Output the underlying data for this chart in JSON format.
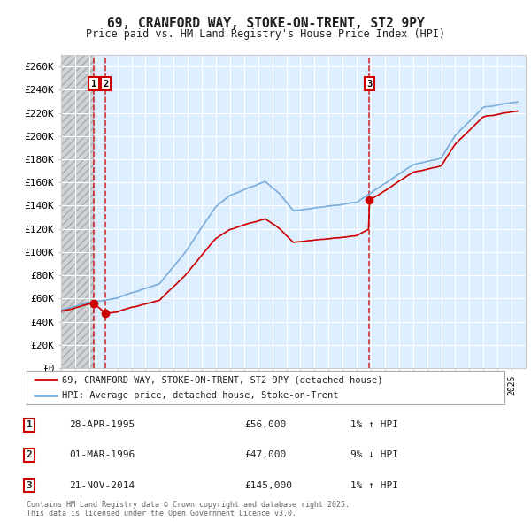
{
  "title": "69, CRANFORD WAY, STOKE-ON-TRENT, ST2 9PY",
  "subtitle": "Price paid vs. HM Land Registry's House Price Index (HPI)",
  "background_color": "#ffffff",
  "plot_bg_color": "#ddeeff",
  "legend_line1": "69, CRANFORD WAY, STOKE-ON-TRENT, ST2 9PY (detached house)",
  "legend_line2": "HPI: Average price, detached house, Stoke-on-Trent",
  "transactions": [
    {
      "num": 1,
      "date": "28-APR-1995",
      "price": 56000,
      "year": 1995.32,
      "hpi_pct": "1%",
      "direction": "↑"
    },
    {
      "num": 2,
      "date": "01-MAR-1996",
      "price": 47000,
      "year": 1996.17,
      "hpi_pct": "9%",
      "direction": "↓"
    },
    {
      "num": 3,
      "date": "21-NOV-2014",
      "price": 145000,
      "year": 2014.89,
      "hpi_pct": "1%",
      "direction": "↑"
    }
  ],
  "copyright_text": "Contains HM Land Registry data © Crown copyright and database right 2025.\nThis data is licensed under the Open Government Licence v3.0.",
  "hpi_color": "#7aaddb",
  "price_color": "#cc0000",
  "vline_color": "#cc0000",
  "ylim": [
    0,
    270000
  ],
  "yticks": [
    0,
    20000,
    40000,
    60000,
    80000,
    100000,
    120000,
    140000,
    160000,
    180000,
    200000,
    220000,
    240000,
    260000
  ],
  "xmin": 1993,
  "xmax": 2026
}
